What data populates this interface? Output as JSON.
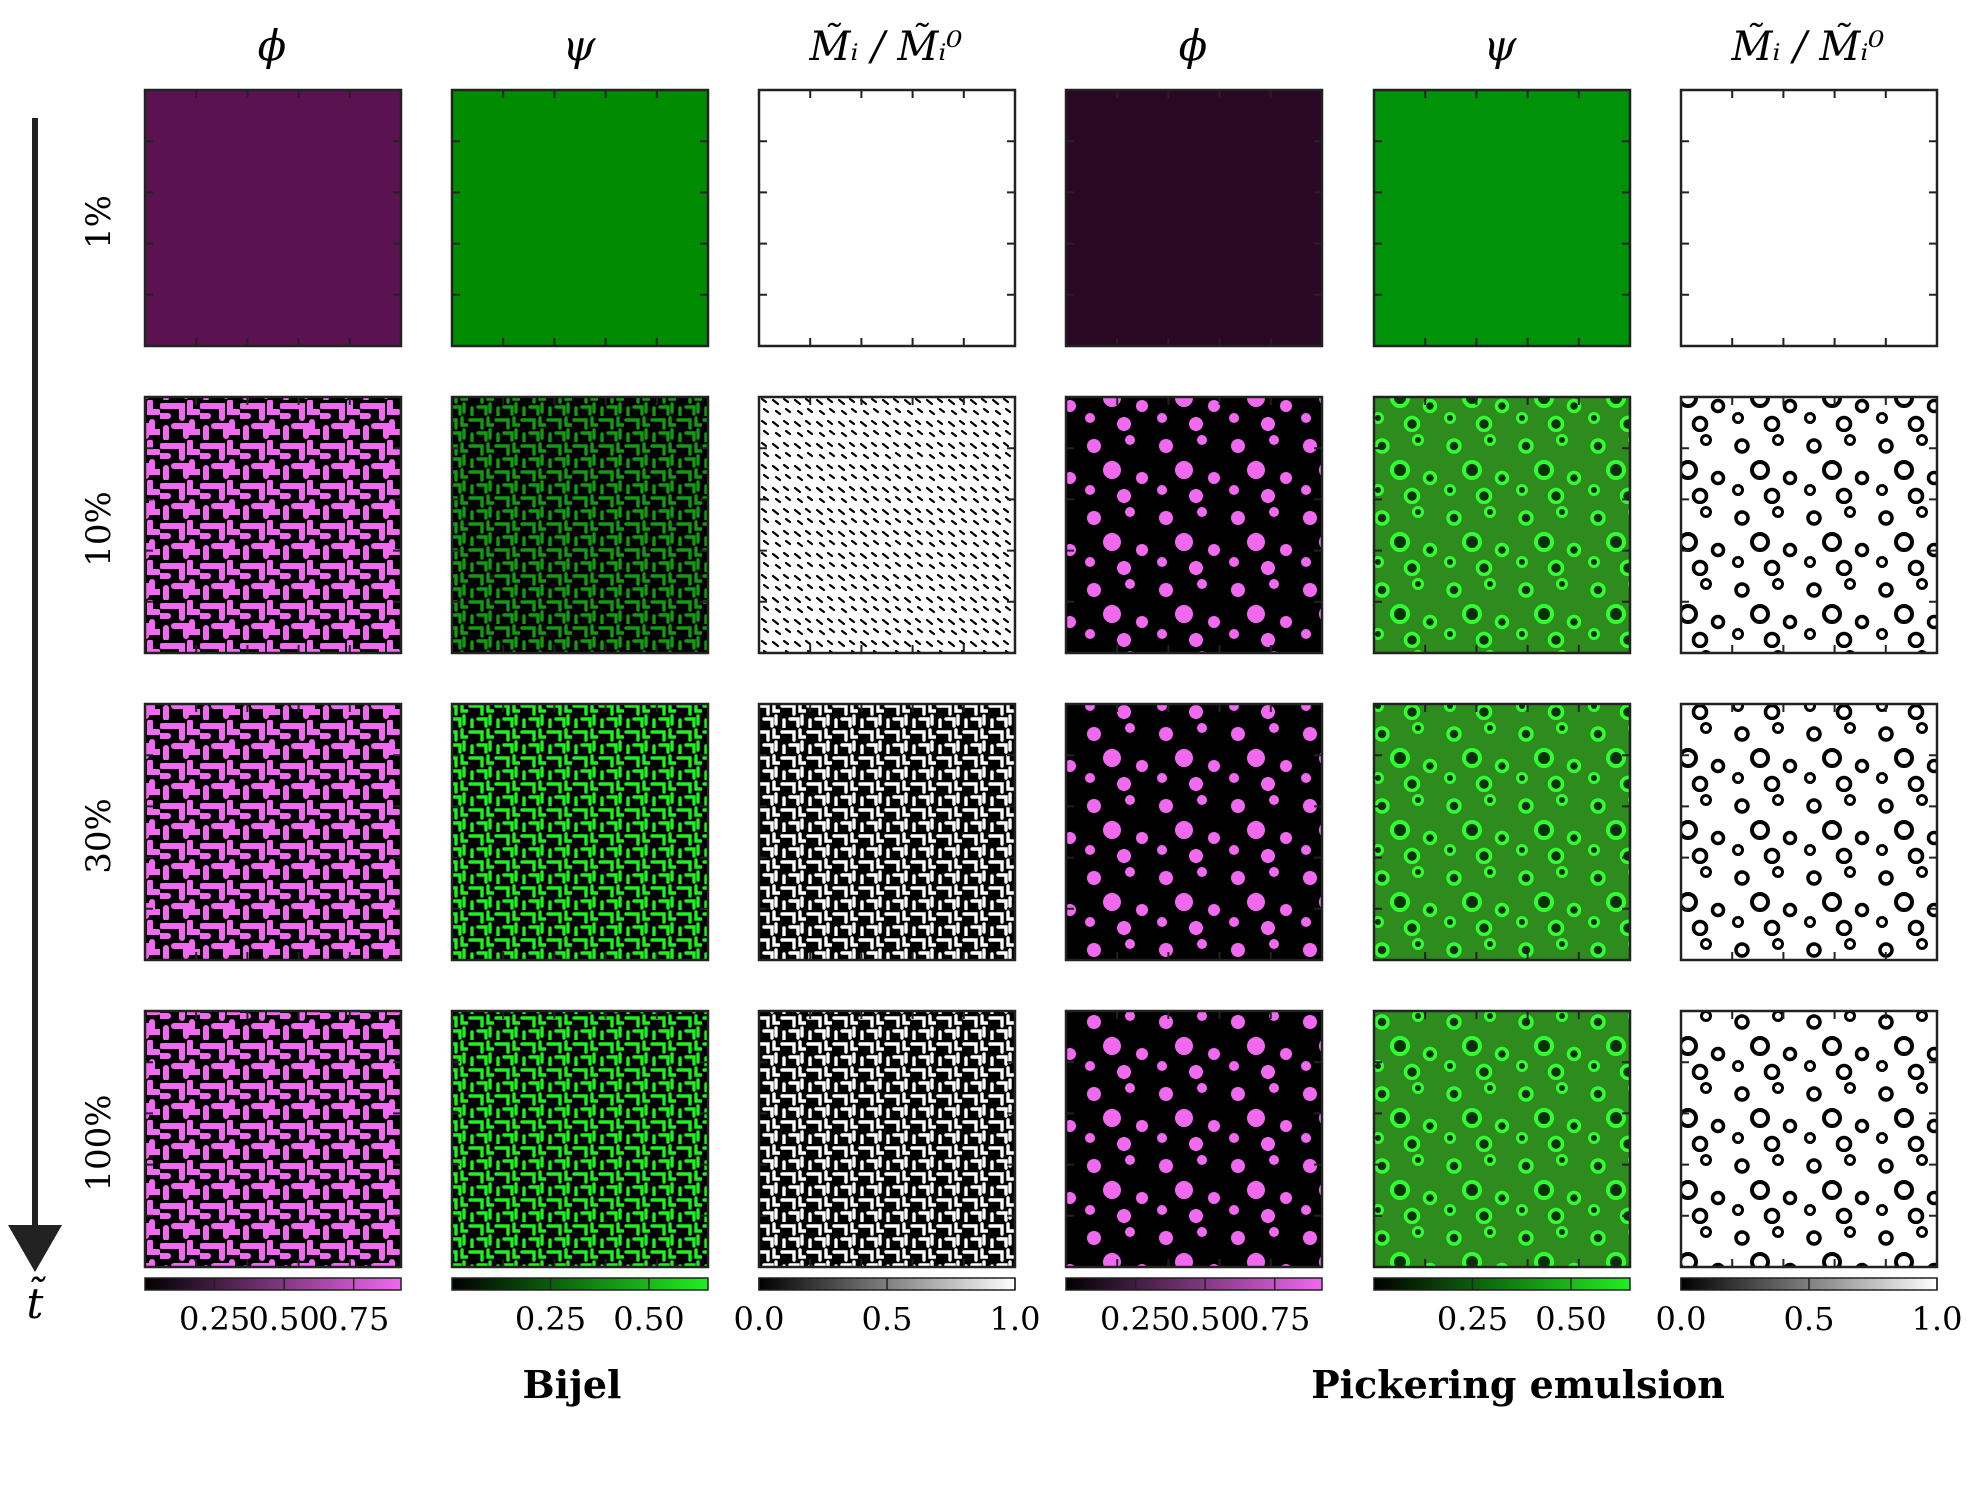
{
  "columns": [
    {
      "header": "ϕ",
      "group": 0,
      "kind": "phi",
      "colors": [
        "#000000",
        "#f068f0"
      ]
    },
    {
      "header": "ψ",
      "group": 0,
      "kind": "psi",
      "colors": [
        "#000000",
        "#20f020"
      ]
    },
    {
      "header": "M̃ᵢ / M̃ᵢ⁰",
      "group": 0,
      "kind": "mob",
      "colors": [
        "#000000",
        "#ffffff"
      ]
    },
    {
      "header": "ϕ",
      "group": 1,
      "kind": "phi",
      "colors": [
        "#000000",
        "#f068f0"
      ]
    },
    {
      "header": "ψ",
      "group": 1,
      "kind": "psi",
      "colors": [
        "#000000",
        "#20f020"
      ]
    },
    {
      "header": "M̃ᵢ / M̃ᵢ⁰",
      "group": 1,
      "kind": "mob",
      "colors": [
        "#000000",
        "#ffffff"
      ]
    }
  ],
  "rows": [
    {
      "label": "1%"
    },
    {
      "label": "10%"
    },
    {
      "label": "30%"
    },
    {
      "label": "100%"
    }
  ],
  "panel_fills": {
    "bijel_phi_1pct": "#5a1250",
    "bijel_psi_1pct": "#008c00",
    "pickering_phi_1pct": "#2a0823",
    "pickering_psi_1pct": "#00930a",
    "mobility_1pct": "#ffffff",
    "pickering_psi_background": "#2e8c1e"
  },
  "colorbars": [
    {
      "ticks": [
        "0.25",
        "0.50",
        "0.75"
      ],
      "tick_values": [
        0.25,
        0.5,
        0.75
      ],
      "range": [
        0,
        0.92
      ]
    },
    {
      "ticks": [
        "0.25",
        "0.50"
      ],
      "tick_values": [
        0.25,
        0.5
      ],
      "range": [
        0,
        0.65
      ]
    },
    {
      "ticks": [
        "0.0",
        "0.5",
        "1.0"
      ],
      "tick_values": [
        0,
        0.5,
        1
      ],
      "range": [
        0,
        1
      ]
    },
    {
      "ticks": [
        "0.25",
        "0.50",
        "0.75"
      ],
      "tick_values": [
        0.25,
        0.5,
        0.75
      ],
      "range": [
        0,
        0.92
      ]
    },
    {
      "ticks": [
        "0.25",
        "0.50"
      ],
      "tick_values": [
        0.25,
        0.5
      ],
      "range": [
        0,
        0.65
      ]
    },
    {
      "ticks": [
        "0.0",
        "0.5",
        "1.0"
      ],
      "tick_values": [
        0,
        0.5,
        1
      ],
      "range": [
        0,
        1
      ]
    }
  ],
  "group_labels": [
    "Bijel",
    "Pickering emulsion"
  ],
  "time_axis_label": "t̃"
}
